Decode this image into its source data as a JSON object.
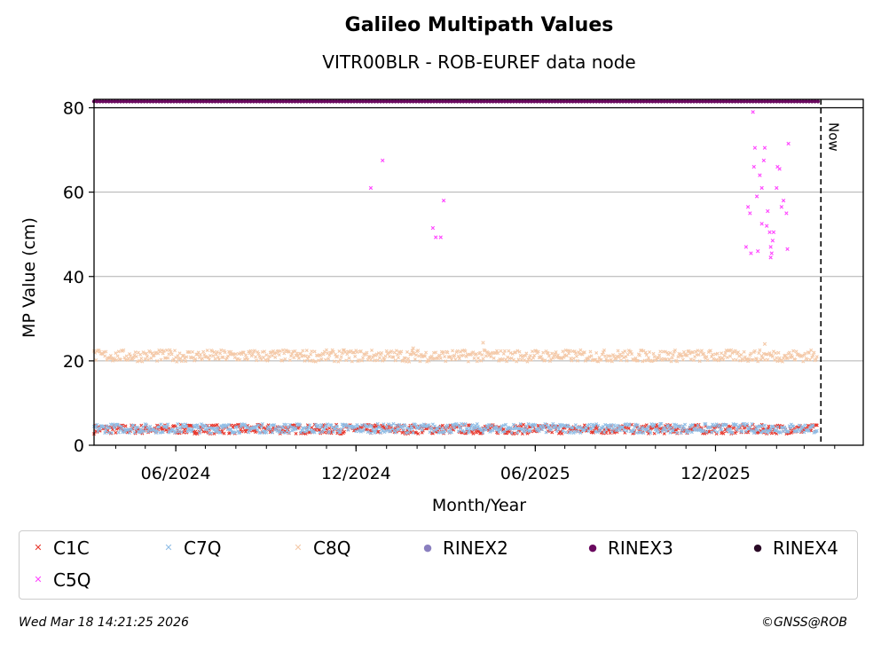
{
  "chart_data": {
    "type": "scatter",
    "title": "Galileo Multipath Values",
    "subtitle": "VITR00BLR - ROB-EUREF data node",
    "xlabel": "Month/Year",
    "ylabel": "MP Value (cm)",
    "ylim": [
      0,
      82
    ],
    "xlim": [
      "2024-03-10",
      "2026-04-30"
    ],
    "yticks": [
      0,
      20,
      40,
      60,
      80
    ],
    "xticks": [
      {
        "date": "2024-06-01",
        "label": "06/2024"
      },
      {
        "date": "2024-12-01",
        "label": "12/2024"
      },
      {
        "date": "2025-06-01",
        "label": "06/2025"
      },
      {
        "date": "2025-12-01",
        "label": "12/2025"
      }
    ],
    "grid": "y",
    "now_label": "Now",
    "now_date": "2026-03-18",
    "series": [
      {
        "name": "C1C",
        "color": "#e8372c",
        "marker": "x",
        "typical": 3.8,
        "range": [
          "2024-03-10",
          "2026-03-15"
        ]
      },
      {
        "name": "C7Q",
        "color": "#8fbde6",
        "marker": "x",
        "typical": 4.0,
        "range": [
          "2024-03-10",
          "2026-03-15"
        ]
      },
      {
        "name": "C8Q",
        "color": "#f4c9a8",
        "marker": "x",
        "typical": 21.2,
        "range": [
          "2024-03-10",
          "2026-03-15"
        ],
        "outliers": [
          [
            "2025-04-09",
            24.3
          ],
          [
            "2025-01-28",
            23.0
          ],
          [
            "2026-01-20",
            24.0
          ]
        ]
      },
      {
        "name": "RINEX2",
        "color": "#8a7fbf",
        "marker": "o"
      },
      {
        "name": "RINEX3",
        "color": "#6a0a5f",
        "marker": "o",
        "value": 81.5,
        "range": [
          "2024-03-10",
          "2026-03-15"
        ]
      },
      {
        "name": "RINEX4",
        "color": "#2a0a26",
        "marker": "o"
      },
      {
        "name": "C5Q",
        "color": "#ff44ff",
        "marker": "x",
        "points": [
          [
            "2024-12-16",
            61
          ],
          [
            "2024-12-28",
            67.5
          ],
          [
            "2025-02-17",
            51.5
          ],
          [
            "2025-02-20",
            49.3
          ],
          [
            "2025-02-25",
            49.3
          ],
          [
            "2025-02-28",
            58
          ],
          [
            "2026-01-01",
            47
          ],
          [
            "2026-01-03",
            56.5
          ],
          [
            "2026-01-06",
            45.5
          ],
          [
            "2026-01-05",
            55
          ],
          [
            "2026-01-08",
            79
          ],
          [
            "2026-01-10",
            70.5
          ],
          [
            "2026-01-09",
            66
          ],
          [
            "2026-01-12",
            59
          ],
          [
            "2026-01-13",
            46
          ],
          [
            "2026-01-15",
            64
          ],
          [
            "2026-01-17",
            61
          ],
          [
            "2026-01-17",
            52.5
          ],
          [
            "2026-01-19",
            67.5
          ],
          [
            "2026-01-20",
            70.5
          ],
          [
            "2026-01-22",
            52
          ],
          [
            "2026-01-23",
            55.5
          ],
          [
            "2026-01-25",
            50.5
          ],
          [
            "2026-01-26",
            47
          ],
          [
            "2026-01-26",
            44.5
          ],
          [
            "2026-01-27",
            45.5
          ],
          [
            "2026-01-28",
            48.5
          ],
          [
            "2026-01-29",
            50.5
          ],
          [
            "2026-02-01",
            61
          ],
          [
            "2026-02-02",
            66
          ],
          [
            "2026-02-04",
            65.5
          ],
          [
            "2026-02-06",
            56.5
          ],
          [
            "2026-02-08",
            58
          ],
          [
            "2026-02-11",
            55
          ],
          [
            "2026-02-13",
            71.5
          ],
          [
            "2026-02-12",
            46.5
          ]
        ]
      }
    ]
  },
  "footer": {
    "timestamp": "Wed Mar 18 14:21:25 2026",
    "copyright": "©GNSS@ROB"
  }
}
